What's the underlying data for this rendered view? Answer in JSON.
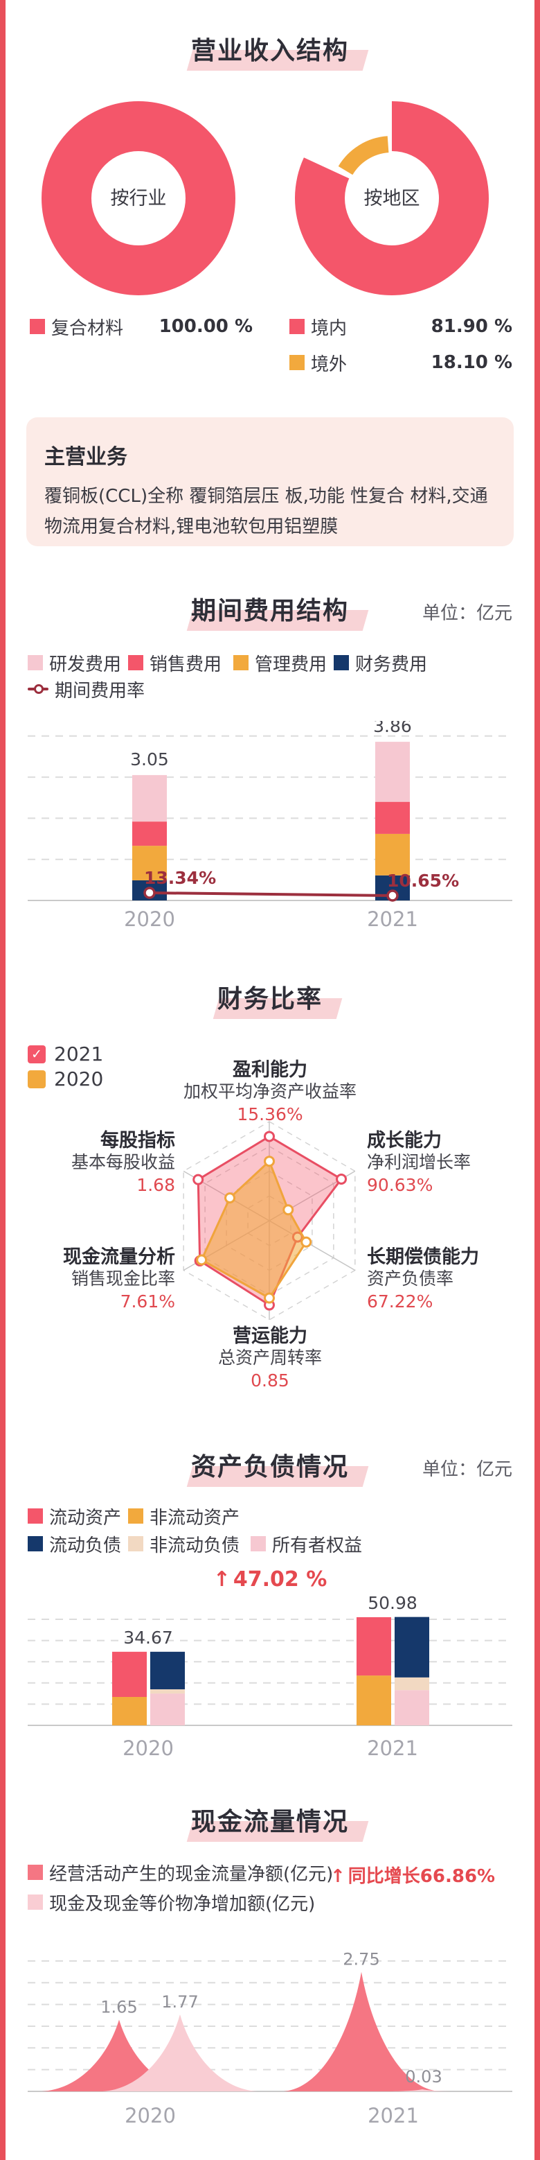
{
  "colors": {
    "red": "#f4566a",
    "orange": "#f2a93d",
    "navy": "#15386b",
    "light_pink": "#f6c8d1",
    "beige": "#f2d9c2",
    "dark_red": "#9c2f3e",
    "text_red": "#e5494f",
    "peak_red": "#f57683",
    "peak_pink": "#f9cdd3",
    "highlight_pink": "#f8d3d6",
    "card_pink": "#fcebe7"
  },
  "sections": {
    "revenue": {
      "title": "营业收入结构",
      "legend_industry": [
        {
          "label": "复合材料",
          "value": "100.00 %",
          "color": "red"
        }
      ],
      "legend_region": [
        {
          "label": "境内",
          "value": "81.90 %",
          "color": "red"
        },
        {
          "label": "境外",
          "value": "18.10 %",
          "color": "orange"
        }
      ]
    },
    "main_business": {
      "title": "主营业务",
      "body": "覆铜板(CCL)全称 覆铜箔层压 板,功能 性复合 材料,交通物流用复合材料,锂电池软包用铝塑膜"
    },
    "period_expense": {
      "title": "期间费用结构",
      "unit": "单位：亿元",
      "legend": [
        {
          "label": "研发费用",
          "color": "light_pink"
        },
        {
          "label": "销售费用",
          "color": "red"
        },
        {
          "label": "管理费用",
          "color": "orange"
        },
        {
          "label": "财务费用",
          "color": "navy"
        }
      ],
      "line_label": "期间费用率"
    },
    "ratios": {
      "title": "财务比率",
      "legend": [
        {
          "label": "2021",
          "color": "red",
          "checked": true
        },
        {
          "label": "2020",
          "color": "orange",
          "checked": false
        }
      ],
      "groups": [
        {
          "name": "盈利能力",
          "metric": "加权平均净资产收益率",
          "value": "15.36%"
        },
        {
          "name": "成长能力",
          "metric": "净利润增长率",
          "value": "90.63%"
        },
        {
          "name": "长期偿债能力",
          "metric": "资产负债率",
          "value": "67.22%"
        },
        {
          "name": "营运能力",
          "metric": "总资产周转率",
          "value": "0.85"
        },
        {
          "name": "现金流量分析",
          "metric": "销售现金比率",
          "value": "7.61%"
        },
        {
          "name": "每股指标",
          "metric": "基本每股收益",
          "value": "1.68"
        }
      ]
    },
    "balance": {
      "title": "资产负债情况",
      "unit": "单位：亿元",
      "legend": [
        {
          "label": "流动资产",
          "color": "red"
        },
        {
          "label": "非流动资产",
          "color": "orange"
        },
        {
          "label": "流动负债",
          "color": "navy"
        },
        {
          "label": "非流动负债",
          "color": "beige"
        },
        {
          "label": "所有者权益",
          "color": "light_pink"
        }
      ],
      "growth": "47.02 %"
    },
    "cash": {
      "title": "现金流量情况",
      "legend": [
        {
          "label": "经营活动产生的现金流量净额(亿元)",
          "color": "peak_red"
        },
        {
          "label": "现金及现金等价物净增加额(亿元)",
          "color": "peak_pink"
        }
      ],
      "growth": "同比增长66.86%"
    }
  },
  "chart_data": [
    {
      "type": "pie",
      "title": "营业收入结构-按行业",
      "center_label": "按行业",
      "slices": [
        {
          "label": "复合材料",
          "value": 100.0,
          "color": "red"
        }
      ]
    },
    {
      "type": "pie",
      "title": "营业收入结构-按地区",
      "center_label": "按地区",
      "slices": [
        {
          "label": "境内",
          "value": 81.9,
          "color": "red"
        },
        {
          "label": "境外",
          "value": 18.1,
          "color": "orange"
        }
      ]
    },
    {
      "type": "bar",
      "title": "期间费用结构",
      "ylabel": "亿元",
      "categories": [
        "2020",
        "2021"
      ],
      "stacked": true,
      "series": [
        {
          "name": "财务费用",
          "color": "navy",
          "values": [
            0.49,
            0.61
          ]
        },
        {
          "name": "管理费用",
          "color": "orange",
          "values": [
            0.84,
            1.01
          ]
        },
        {
          "name": "销售费用",
          "color": "red",
          "values": [
            0.59,
            0.78
          ]
        },
        {
          "name": "研发费用",
          "color": "light_pink",
          "values": [
            1.13,
            1.46
          ]
        }
      ],
      "totals": [
        "3.05",
        "3.86"
      ],
      "line": {
        "name": "期间费用率",
        "values": [
          13.34,
          10.65
        ],
        "labels": [
          "13.34%",
          "10.65%"
        ]
      },
      "ylim": [
        0,
        4
      ],
      "grid_step": 1
    },
    {
      "type": "radar",
      "title": "财务比率",
      "axes": [
        "盈利能力",
        "成长能力",
        "长期偿债能力",
        "营运能力",
        "现金流量分析",
        "每股指标"
      ],
      "axis_metrics": [
        "加权平均净资产收益率",
        "净利润增长率",
        "资产负债率",
        "总资产周转率",
        "销售现金比率",
        "基本每股收益"
      ],
      "axis_display_values": [
        "15.36%",
        "90.63%",
        "67.22%",
        "0.85",
        "7.61%",
        "1.68"
      ],
      "series": [
        {
          "name": "2021",
          "color": "red",
          "fractions": [
            0.85,
            0.84,
            0.33,
            0.85,
            0.81,
            0.83
          ]
        },
        {
          "name": "2020",
          "color": "orange",
          "fractions": [
            0.6,
            0.22,
            0.43,
            0.78,
            0.79,
            0.46
          ]
        }
      ]
    },
    {
      "type": "bar",
      "title": "资产负债情况",
      "ylabel": "亿元",
      "categories": [
        "2020",
        "2021"
      ],
      "grouped_stacked": true,
      "groups": [
        {
          "year": "2020",
          "total": "34.67",
          "bars": [
            {
              "stack": [
                {
                  "name": "非流动资产",
                  "color": "orange",
                  "value": 13.4
                },
                {
                  "name": "流动资产",
                  "color": "red",
                  "value": 21.3
                }
              ]
            },
            {
              "stack": [
                {
                  "name": "所有者权益",
                  "color": "light_pink",
                  "value": 15.0
                },
                {
                  "name": "非流动负债",
                  "color": "beige",
                  "value": 2.0
                },
                {
                  "name": "流动负债",
                  "color": "navy",
                  "value": 17.7
                }
              ]
            }
          ]
        },
        {
          "year": "2021",
          "total": "50.98",
          "bars": [
            {
              "stack": [
                {
                  "name": "非流动资产",
                  "color": "orange",
                  "value": 23.5
                },
                {
                  "name": "流动资产",
                  "color": "red",
                  "value": 27.5
                }
              ]
            },
            {
              "stack": [
                {
                  "name": "所有者权益",
                  "color": "light_pink",
                  "value": 16.6
                },
                {
                  "name": "非流动负债",
                  "color": "beige",
                  "value": 6.0
                },
                {
                  "name": "流动负债",
                  "color": "navy",
                  "value": 28.5
                }
              ]
            }
          ]
        }
      ],
      "growth": "47.02 %",
      "ylim": [
        0,
        55
      ],
      "grid_step": 10
    },
    {
      "type": "area-peaks",
      "title": "现金流量情况",
      "categories": [
        "2020",
        "2021"
      ],
      "series": [
        {
          "name": "经营活动产生的现金流量净额(亿元)",
          "color": "peak_red",
          "values": [
            1.65,
            2.75
          ],
          "labels": [
            "1.65",
            "2.75"
          ]
        },
        {
          "name": "现金及现金等价物净增加额(亿元)",
          "color": "peak_pink",
          "values": [
            1.77,
            0.03
          ],
          "labels": [
            "1.77",
            "0.03"
          ]
        }
      ],
      "growth": "同比增长66.86%",
      "ylim": [
        0,
        3
      ],
      "grid_step": 0.5
    }
  ]
}
